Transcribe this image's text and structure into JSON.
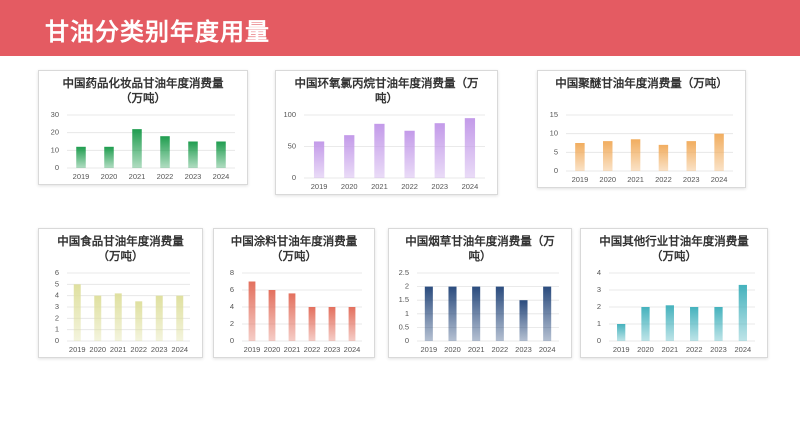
{
  "slide_title": "甘油分类别年度用量",
  "chart_data": [
    {
      "type": "bar",
      "title": "中国药品化妆品甘油年度消费量（万吨）",
      "categories": [
        "2019",
        "2020",
        "2021",
        "2022",
        "2023",
        "2024"
      ],
      "values": [
        12,
        12,
        22,
        18,
        15,
        15
      ],
      "color": "#1f9d4f",
      "ylim": [
        0,
        30
      ],
      "yticks": [
        0,
        10,
        20,
        30
      ],
      "grid": true
    },
    {
      "type": "bar",
      "title": "中国环氧氯丙烷甘油年度消费量（万吨）",
      "categories": [
        "2019",
        "2020",
        "2021",
        "2022",
        "2023",
        "2024"
      ],
      "values": [
        58,
        68,
        86,
        75,
        87,
        95
      ],
      "color": "#c39ae9",
      "ylim": [
        0,
        100
      ],
      "yticks": [
        0,
        50,
        100
      ],
      "grid": true
    },
    {
      "type": "bar",
      "title": "中国聚醚甘油年度消费量（万吨）",
      "categories": [
        "2019",
        "2020",
        "2021",
        "2022",
        "2023",
        "2024"
      ],
      "values": [
        7.5,
        8,
        8.5,
        7,
        8,
        10
      ],
      "color": "#f1ad5f",
      "ylim": [
        0,
        15
      ],
      "yticks": [
        0,
        5,
        10,
        15
      ],
      "grid": true
    },
    {
      "type": "bar",
      "title": "中国食品甘油年度消费量（万吨）",
      "categories": [
        "2019",
        "2020",
        "2021",
        "2022",
        "2023",
        "2024"
      ],
      "values": [
        5,
        4,
        4.2,
        3.5,
        4,
        4
      ],
      "color": "#dfe09f",
      "ylim": [
        0,
        6
      ],
      "yticks": [
        0,
        1,
        2,
        3,
        4,
        5,
        6
      ],
      "grid": true
    },
    {
      "type": "bar",
      "title": "中国涂料甘油年度消费量（万吨）",
      "categories": [
        "2019",
        "2020",
        "2021",
        "2022",
        "2023",
        "2024"
      ],
      "values": [
        7,
        6,
        5.6,
        4,
        4,
        4
      ],
      "color": "#e3705e",
      "ylim": [
        0,
        8
      ],
      "yticks": [
        0,
        2,
        4,
        6,
        8
      ],
      "grid": true
    },
    {
      "type": "bar",
      "title": "中国烟草甘油年度消费量（万吨）",
      "categories": [
        "2019",
        "2020",
        "2021",
        "2022",
        "2023",
        "2024"
      ],
      "values": [
        2,
        2,
        2,
        2,
        1.5,
        2
      ],
      "color": "#2b4c7e",
      "ylim": [
        0,
        2.5
      ],
      "yticks": [
        0,
        0.5,
        1,
        1.5,
        2,
        2.5
      ],
      "grid": true
    },
    {
      "type": "bar",
      "title": "中国其他行业甘油年度消费量（万吨）",
      "categories": [
        "2019",
        "2020",
        "2021",
        "2022",
        "2023",
        "2024"
      ],
      "values": [
        1,
        2,
        2.1,
        2,
        2,
        3.3
      ],
      "color": "#45b2bd",
      "ylim": [
        0,
        4
      ],
      "yticks": [
        0,
        1,
        2,
        3,
        4
      ],
      "grid": true
    }
  ]
}
